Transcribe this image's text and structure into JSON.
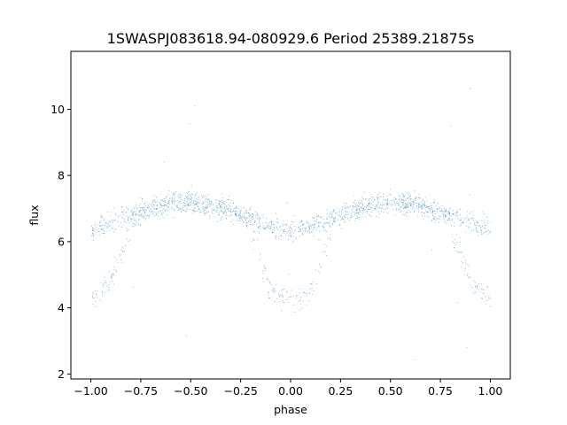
{
  "chart_data": {
    "type": "scatter",
    "title": "1SWASPJ083618.94-080929.6 Period 25389.21875s",
    "xlabel": "phase",
    "ylabel": "flux",
    "xlim": [
      -1.1,
      1.1
    ],
    "ylim": [
      1.85,
      11.75
    ],
    "xticks": [
      -1.0,
      -0.75,
      -0.5,
      -0.25,
      0.0,
      0.25,
      0.5,
      0.75,
      1.0
    ],
    "xtick_labels": [
      "−1.00",
      "−0.75",
      "−0.50",
      "−0.25",
      "0.00",
      "0.25",
      "0.50",
      "0.75",
      "1.00"
    ],
    "yticks": [
      2,
      4,
      6,
      8,
      10
    ],
    "ytick_labels": [
      "2",
      "4",
      "6",
      "8",
      "10"
    ],
    "grid": false,
    "point_color": "#1f77b4",
    "series": [
      {
        "curve_type": "sinusoidal-ridge",
        "points": [
          [
            -1.0,
            6.4
          ],
          [
            -0.9,
            6.6
          ],
          [
            -0.8,
            6.8
          ],
          [
            -0.7,
            7.0
          ],
          [
            -0.6,
            7.15
          ],
          [
            -0.5,
            7.2
          ],
          [
            -0.4,
            7.1
          ],
          [
            -0.3,
            6.95
          ],
          [
            -0.2,
            6.7
          ],
          [
            -0.1,
            6.45
          ],
          [
            0.0,
            6.3
          ],
          [
            0.1,
            6.45
          ],
          [
            0.2,
            6.7
          ],
          [
            0.3,
            6.95
          ],
          [
            0.4,
            7.1
          ],
          [
            0.5,
            7.2
          ],
          [
            0.6,
            7.15
          ],
          [
            0.7,
            7.0
          ],
          [
            0.8,
            6.8
          ],
          [
            0.9,
            6.6
          ],
          [
            1.0,
            6.4
          ]
        ]
      },
      {
        "curve_type": "lower-branch",
        "points": [
          [
            -1.0,
            4.3
          ],
          [
            -0.95,
            4.5
          ],
          [
            -0.9,
            4.9
          ],
          [
            -0.85,
            5.6
          ],
          [
            -0.8,
            6.3
          ],
          [
            -0.2,
            6.2
          ],
          [
            -0.15,
            5.3
          ],
          [
            -0.1,
            4.6
          ],
          [
            -0.05,
            4.3
          ],
          [
            0.0,
            4.2
          ],
          [
            0.05,
            4.3
          ],
          [
            0.1,
            4.6
          ],
          [
            0.15,
            5.3
          ],
          [
            0.2,
            6.2
          ],
          [
            0.8,
            6.2
          ],
          [
            0.85,
            5.6
          ],
          [
            0.9,
            4.9
          ],
          [
            0.95,
            4.5
          ],
          [
            1.0,
            4.3
          ]
        ]
      }
    ]
  }
}
